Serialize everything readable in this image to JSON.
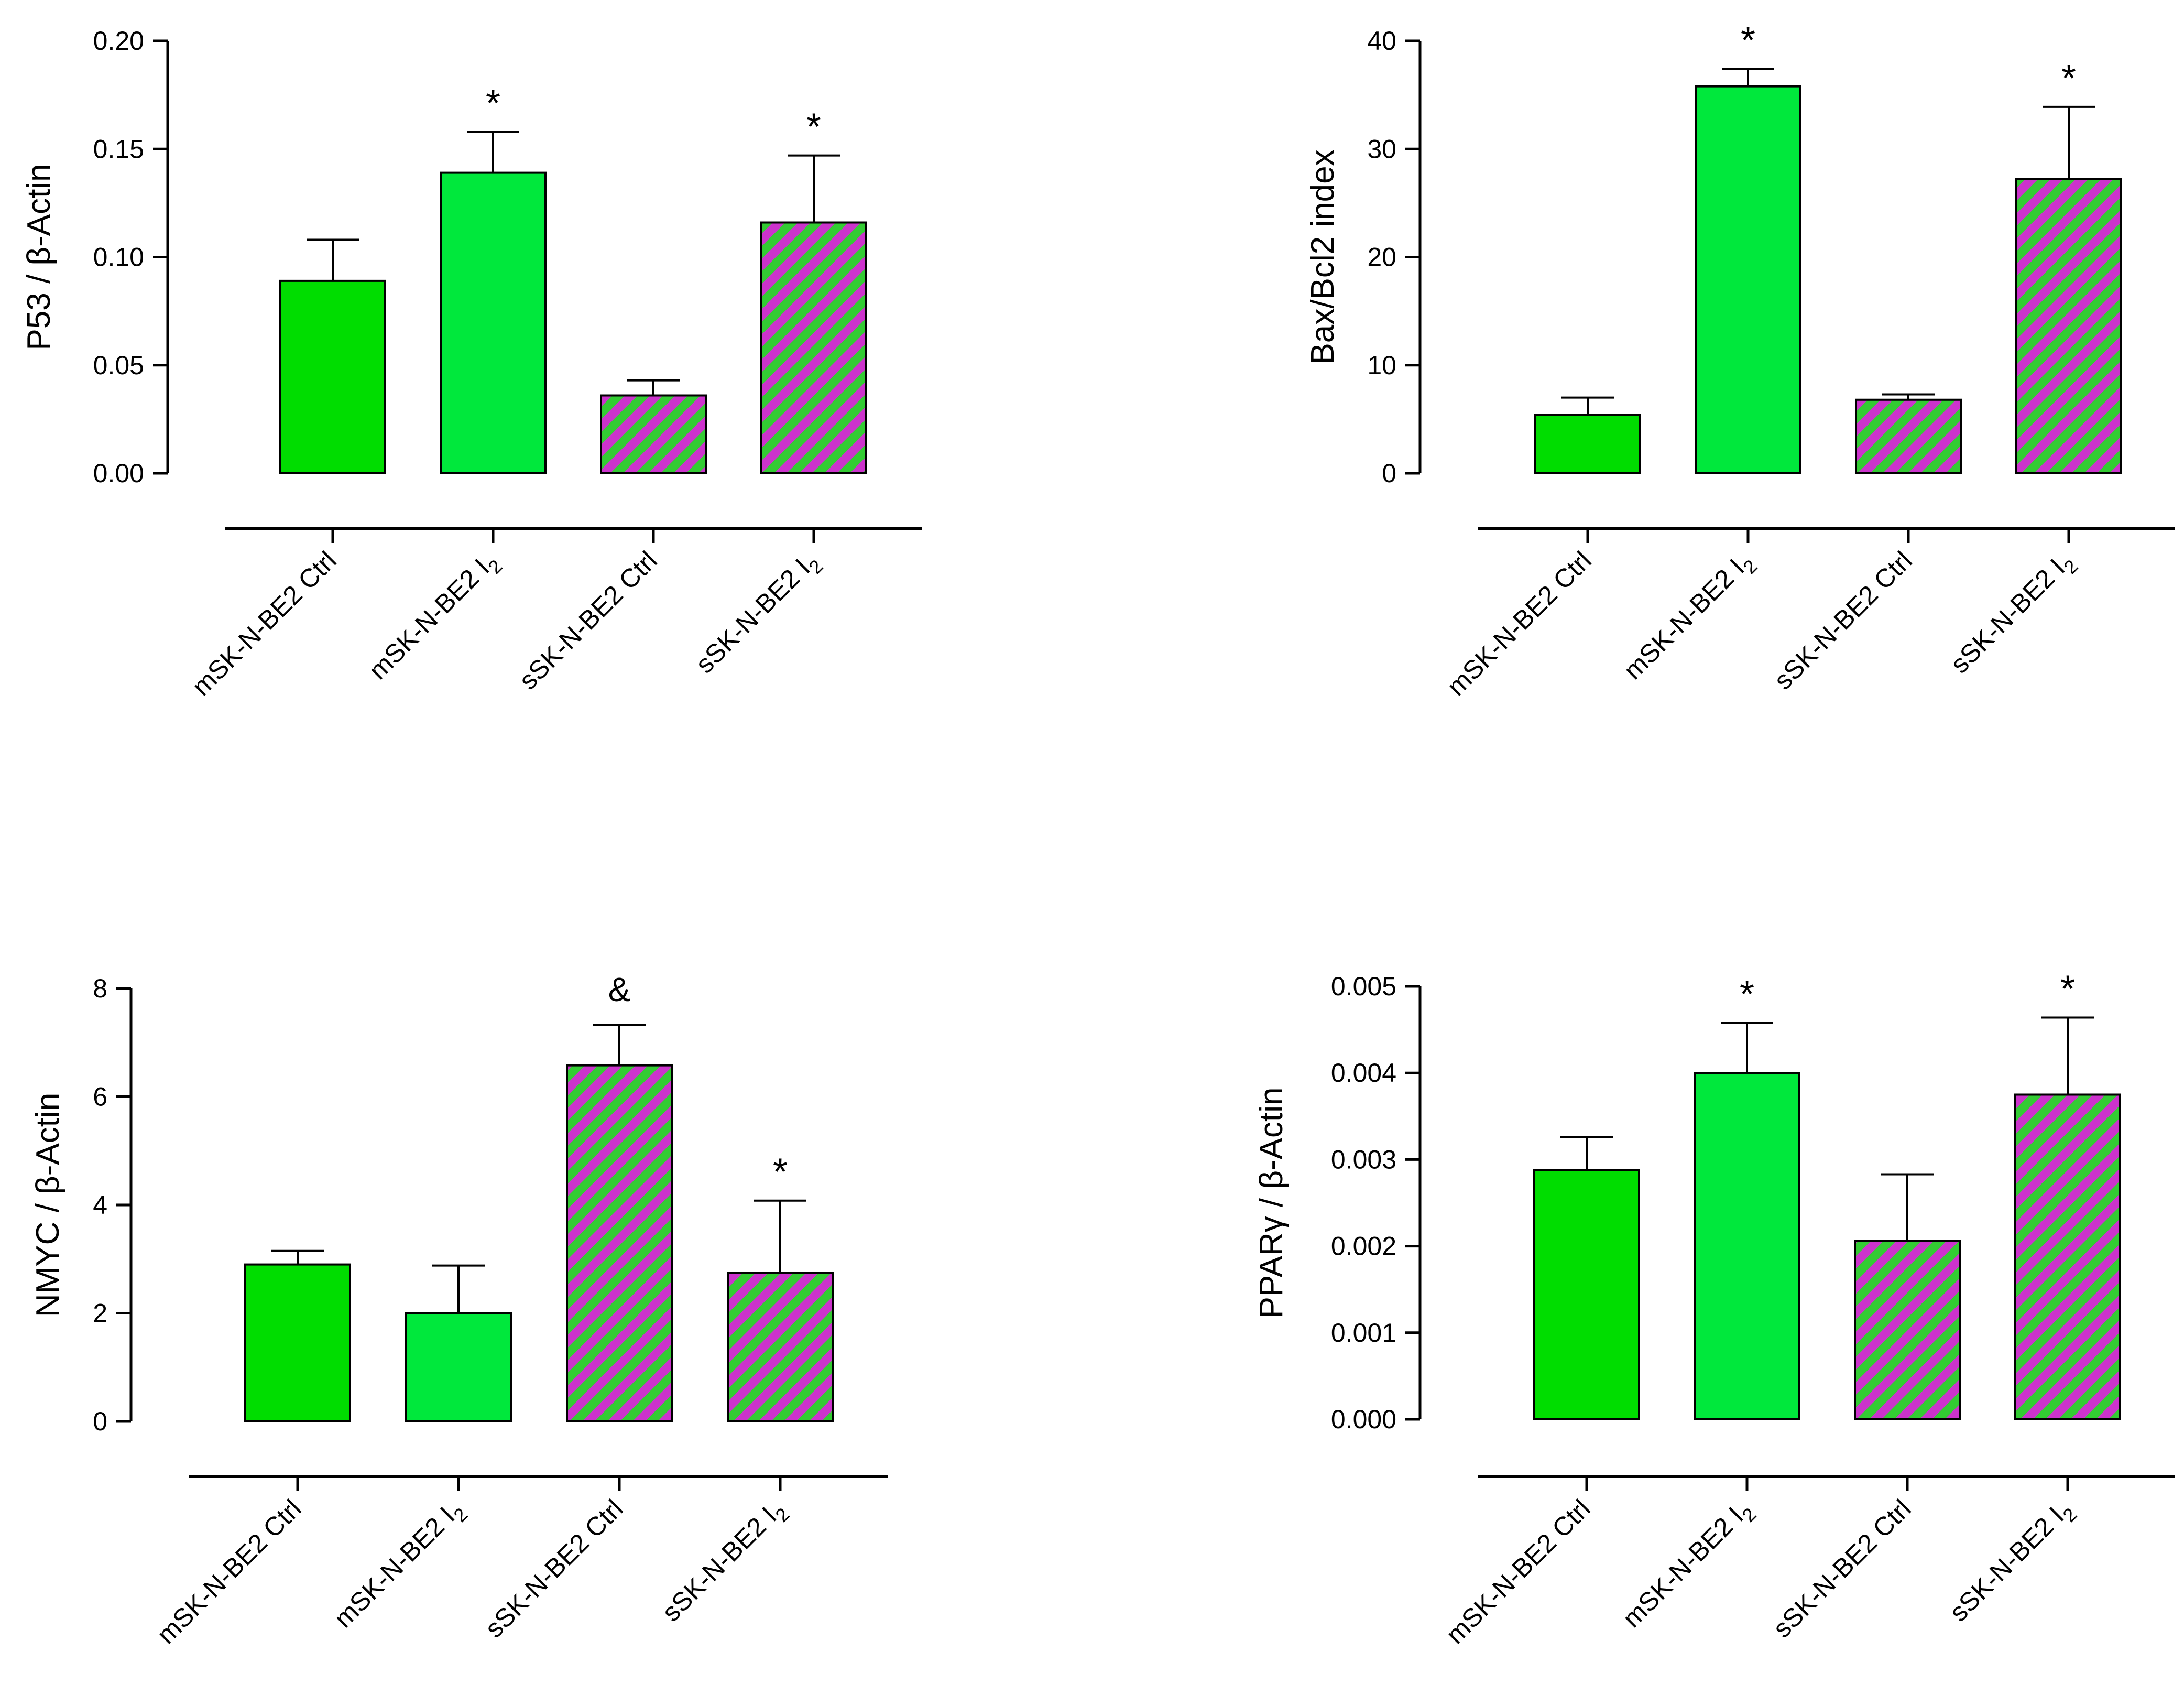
{
  "figure": {
    "colors": {
      "solid_dark_green": "#00DD00",
      "solid_light_green": "#00E83C",
      "hatch_green": "#33CC33",
      "hatch_magenta": "#CC33CC",
      "axis": "#000000"
    }
  },
  "chart_data": [
    {
      "id": "p53",
      "type": "bar",
      "position": "top-left",
      "ylabel": "P53 / β-Actin",
      "ylim": [
        0,
        0.2
      ],
      "yticks": [
        0.0,
        0.05,
        0.1,
        0.15,
        0.2
      ],
      "ytick_labels": [
        "0.00",
        "0.05",
        "0.10",
        "0.15",
        "0.20"
      ],
      "categories": [
        {
          "base": "mSK-N-BE2 Ctrl",
          "sub": ""
        },
        {
          "base": "mSK-N-BE2 I",
          "sub": "2"
        },
        {
          "base": "sSK-N-BE2 Ctrl",
          "sub": ""
        },
        {
          "base": "sSK-N-BE2 I",
          "sub": "2"
        }
      ],
      "values": [
        0.089,
        0.139,
        0.036,
        0.116
      ],
      "errors": [
        0.019,
        0.019,
        0.007,
        0.031
      ],
      "fills": [
        "solid_dark",
        "solid_light",
        "hatched",
        "hatched"
      ],
      "significance": [
        "",
        "*",
        "",
        "*"
      ]
    },
    {
      "id": "bax-bcl2",
      "type": "bar",
      "position": "top-right",
      "ylabel": "Bax/Bcl2 index",
      "ylim": [
        0,
        40
      ],
      "yticks": [
        0,
        10,
        20,
        30,
        40
      ],
      "ytick_labels": [
        "0",
        "10",
        "20",
        "30",
        "40"
      ],
      "categories": [
        {
          "base": "mSK-N-BE2 Ctrl",
          "sub": ""
        },
        {
          "base": "mSK-N-BE2 I",
          "sub": "2"
        },
        {
          "base": "sSK-N-BE2 Ctrl",
          "sub": ""
        },
        {
          "base": "sSK-N-BE2 I",
          "sub": "2"
        }
      ],
      "values": [
        5.4,
        35.8,
        6.8,
        27.2
      ],
      "errors": [
        1.6,
        1.6,
        0.5,
        6.7
      ],
      "fills": [
        "solid_dark",
        "solid_light",
        "hatched",
        "hatched"
      ],
      "significance": [
        "",
        "*",
        "",
        "*"
      ]
    },
    {
      "id": "nmyc",
      "type": "bar",
      "position": "bottom-left",
      "ylabel": "NMYC / β-Actin",
      "ylim": [
        0,
        8
      ],
      "yticks": [
        0,
        2,
        4,
        6,
        8
      ],
      "ytick_labels": [
        "0",
        "2",
        "4",
        "6",
        "8"
      ],
      "categories": [
        {
          "base": "mSK-N-BE2 Ctrl",
          "sub": ""
        },
        {
          "base": "mSK-N-BE2 I",
          "sub": "2"
        },
        {
          "base": "sSK-N-BE2 Ctrl",
          "sub": ""
        },
        {
          "base": "sSK-N-BE2 I",
          "sub": "2"
        }
      ],
      "values": [
        2.9,
        2.0,
        6.58,
        2.75
      ],
      "errors": [
        0.25,
        0.88,
        0.75,
        1.33
      ],
      "fills": [
        "solid_dark",
        "solid_light",
        "hatched",
        "hatched"
      ],
      "significance": [
        "",
        "",
        "&",
        "*"
      ]
    },
    {
      "id": "ppar-gamma",
      "type": "bar",
      "position": "bottom-right",
      "ylabel": "PPARγ / β-Actin",
      "ylim": [
        0,
        0.005
      ],
      "yticks": [
        0,
        0.001,
        0.002,
        0.003,
        0.004,
        0.005
      ],
      "ytick_labels": [
        "0.000",
        "0.001",
        "0.002",
        "0.003",
        "0.004",
        "0.005"
      ],
      "categories": [
        {
          "base": "mSK-N-BE2 Ctrl",
          "sub": ""
        },
        {
          "base": "mSK-N-BE2 I",
          "sub": "2"
        },
        {
          "base": "sSK-N-BE2 Ctrl",
          "sub": ""
        },
        {
          "base": "sSK-N-BE2 I",
          "sub": "2"
        }
      ],
      "values": [
        0.00288,
        0.004,
        0.00206,
        0.00375
      ],
      "errors": [
        0.00038,
        0.00058,
        0.00077,
        0.00089
      ],
      "fills": [
        "solid_dark",
        "solid_light",
        "hatched",
        "hatched"
      ],
      "significance": [
        "",
        "*",
        "",
        "*"
      ]
    }
  ]
}
